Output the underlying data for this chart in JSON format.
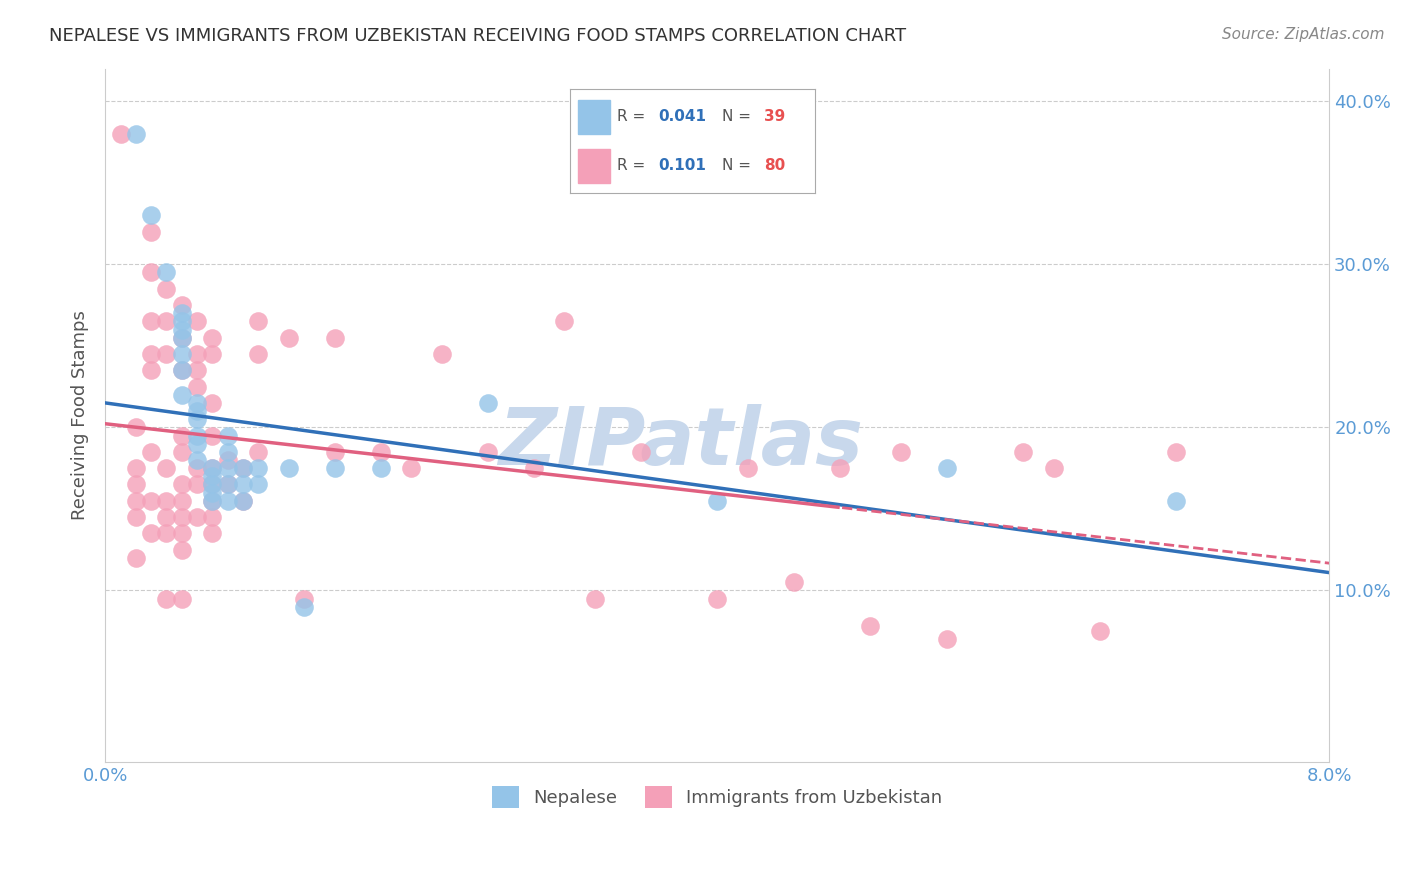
{
  "title": "NEPALESE VS IMMIGRANTS FROM UZBEKISTAN RECEIVING FOOD STAMPS CORRELATION CHART",
  "source": "Source: ZipAtlas.com",
  "ylabel": "Receiving Food Stamps",
  "nepalese_color": "#94C4E8",
  "uzbekistan_color": "#F4A0B8",
  "nepalese_line_color": "#3070B8",
  "uzbekistan_line_color": "#E06080",
  "right_axis_color": "#5B9BD5",
  "watermark_text": "ZIPatlas",
  "watermark_color": "#C8D8EC",
  "background_color": "#FFFFFF",
  "xlim": [
    0.0,
    0.08
  ],
  "ylim": [
    -0.005,
    0.42
  ],
  "legend_R_nep": "0.041",
  "legend_N_nep": "39",
  "legend_R_uzb": "0.101",
  "legend_N_uzb": "80",
  "nepalese_x": [
    0.002,
    0.003,
    0.004,
    0.005,
    0.005,
    0.005,
    0.005,
    0.005,
    0.005,
    0.005,
    0.006,
    0.006,
    0.006,
    0.006,
    0.006,
    0.006,
    0.007,
    0.007,
    0.007,
    0.007,
    0.007,
    0.008,
    0.008,
    0.008,
    0.008,
    0.008,
    0.009,
    0.009,
    0.009,
    0.01,
    0.01,
    0.012,
    0.013,
    0.015,
    0.018,
    0.025,
    0.04,
    0.055,
    0.07
  ],
  "nepalese_y": [
    0.38,
    0.33,
    0.295,
    0.27,
    0.265,
    0.26,
    0.255,
    0.245,
    0.235,
    0.22,
    0.215,
    0.21,
    0.205,
    0.195,
    0.19,
    0.18,
    0.175,
    0.17,
    0.165,
    0.16,
    0.155,
    0.195,
    0.185,
    0.175,
    0.165,
    0.155,
    0.175,
    0.165,
    0.155,
    0.175,
    0.165,
    0.175,
    0.09,
    0.175,
    0.175,
    0.215,
    0.155,
    0.175,
    0.155
  ],
  "uzbekistan_x": [
    0.001,
    0.002,
    0.002,
    0.002,
    0.002,
    0.002,
    0.002,
    0.003,
    0.003,
    0.003,
    0.003,
    0.003,
    0.003,
    0.003,
    0.003,
    0.004,
    0.004,
    0.004,
    0.004,
    0.004,
    0.004,
    0.004,
    0.004,
    0.005,
    0.005,
    0.005,
    0.005,
    0.005,
    0.005,
    0.005,
    0.005,
    0.005,
    0.005,
    0.005,
    0.006,
    0.006,
    0.006,
    0.006,
    0.006,
    0.006,
    0.006,
    0.007,
    0.007,
    0.007,
    0.007,
    0.007,
    0.007,
    0.007,
    0.007,
    0.007,
    0.008,
    0.008,
    0.009,
    0.009,
    0.01,
    0.01,
    0.01,
    0.012,
    0.013,
    0.015,
    0.015,
    0.018,
    0.02,
    0.022,
    0.025,
    0.028,
    0.03,
    0.032,
    0.035,
    0.04,
    0.042,
    0.045,
    0.048,
    0.05,
    0.052,
    0.055,
    0.06,
    0.062,
    0.065,
    0.07
  ],
  "uzbekistan_y": [
    0.38,
    0.2,
    0.175,
    0.165,
    0.155,
    0.145,
    0.12,
    0.32,
    0.295,
    0.265,
    0.245,
    0.235,
    0.185,
    0.155,
    0.135,
    0.285,
    0.265,
    0.245,
    0.175,
    0.155,
    0.145,
    0.135,
    0.095,
    0.275,
    0.255,
    0.235,
    0.195,
    0.185,
    0.165,
    0.155,
    0.145,
    0.135,
    0.125,
    0.095,
    0.265,
    0.245,
    0.235,
    0.225,
    0.175,
    0.165,
    0.145,
    0.255,
    0.245,
    0.215,
    0.195,
    0.175,
    0.165,
    0.155,
    0.145,
    0.135,
    0.18,
    0.165,
    0.175,
    0.155,
    0.265,
    0.245,
    0.185,
    0.255,
    0.095,
    0.255,
    0.185,
    0.185,
    0.175,
    0.245,
    0.185,
    0.175,
    0.265,
    0.095,
    0.185,
    0.095,
    0.175,
    0.105,
    0.175,
    0.078,
    0.185,
    0.07,
    0.185,
    0.175,
    0.075,
    0.185
  ]
}
